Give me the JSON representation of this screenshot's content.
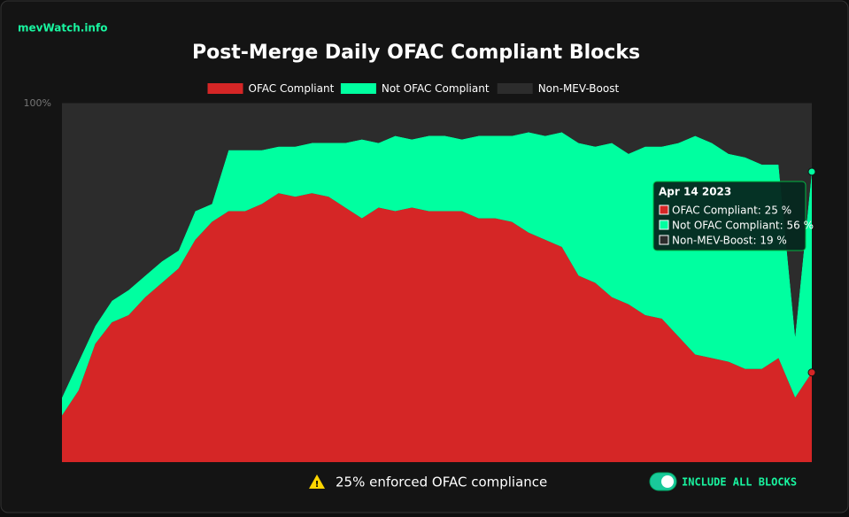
{
  "brand": "mevWatch.info",
  "notice": "25% enforced OFAC compliance",
  "toggle": "INCLUDE ALL BLOCKS",
  "chart_data": {
    "type": "stacked_area",
    "title": "Post-Merge Daily OFAC Compliant Blocks",
    "categories": [
      null,
      null,
      null,
      null,
      null,
      null,
      null,
      null,
      null,
      null,
      null,
      null,
      null,
      null,
      null,
      null,
      null,
      null,
      null,
      null,
      null,
      null,
      null,
      null,
      null,
      null,
      null,
      null,
      null,
      null,
      null,
      null,
      null,
      null,
      null,
      null,
      null,
      null,
      null,
      null,
      null,
      null,
      null,
      null,
      null,
      "Apr 14 2023"
    ],
    "ylim": [
      0,
      100
    ],
    "yticks": [
      {
        "value": 100,
        "label": "100%"
      }
    ],
    "series": [
      {
        "name": "OFAC Compliant",
        "color": "#d52626",
        "values": [
          13,
          20,
          33,
          39,
          41,
          46,
          50,
          54,
          62,
          67,
          70,
          70,
          72,
          75,
          74,
          75,
          74,
          71,
          68,
          71,
          70,
          71,
          70,
          70,
          70,
          68,
          68,
          67,
          64,
          62,
          60,
          52,
          50,
          46,
          44,
          41,
          40,
          35,
          30,
          29,
          28,
          26,
          26,
          29,
          18,
          25
        ]
      },
      {
        "name": "Not OFAC Compliant",
        "color": "#00ffa0",
        "values": [
          5,
          8,
          5,
          6,
          7,
          6,
          6,
          5,
          8,
          5,
          17,
          17,
          15,
          13,
          14,
          14,
          15,
          18,
          22,
          18,
          21,
          19,
          21,
          21,
          20,
          23,
          23,
          24,
          28,
          29,
          32,
          37,
          38,
          43,
          42,
          47,
          48,
          54,
          61,
          60,
          58,
          59,
          57,
          54,
          17,
          56
        ]
      },
      {
        "name": "Non-MEV-Boost",
        "color": "#2c2c2c",
        "values": [
          82,
          72,
          62,
          55,
          52,
          48,
          44,
          41,
          30,
          28,
          13,
          13,
          13,
          12,
          12,
          11,
          11,
          11,
          10,
          11,
          9,
          10,
          9,
          9,
          10,
          9,
          9,
          9,
          8,
          9,
          8,
          11,
          12,
          11,
          14,
          12,
          12,
          11,
          9,
          11,
          14,
          15,
          17,
          17,
          65,
          19
        ]
      }
    ],
    "tooltip": [
      "OFAC Compliant: 25 %",
      "Not OFAC Compliant: 56 %",
      "Non-MEV-Boost: 19 %"
    ]
  }
}
